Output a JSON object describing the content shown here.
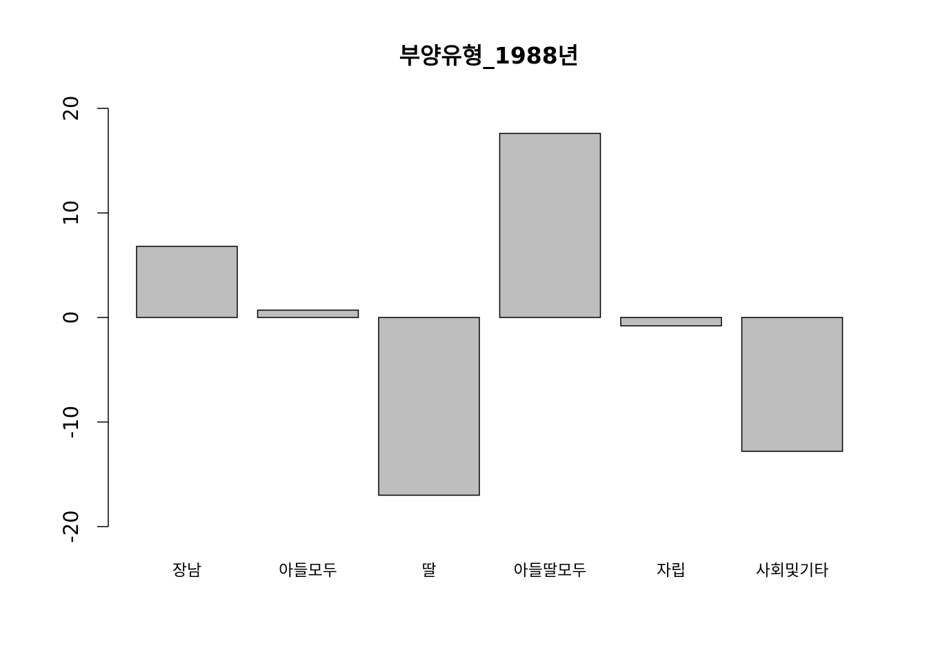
{
  "chart_data": {
    "type": "bar",
    "title": "부양유형_1988년",
    "xlabel": "",
    "ylabel": "",
    "categories": [
      "장남",
      "아들모두",
      "딸",
      "아들딸모두",
      "자립",
      "사회및기타"
    ],
    "values": [
      6.8,
      0.7,
      -17.0,
      17.6,
      -0.8,
      -12.8
    ],
    "ylim": [
      -20,
      20
    ],
    "yticks": [
      -20,
      -10,
      0,
      10,
      20
    ],
    "ytick_labels": [
      "-20",
      "-10",
      "0",
      "10",
      "20"
    ],
    "grid": false,
    "legend": "none",
    "bar_color": "#bebebe",
    "edge_color": "#000000"
  }
}
